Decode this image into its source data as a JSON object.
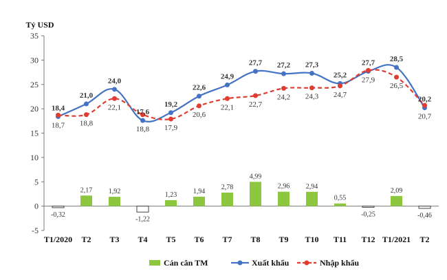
{
  "chart_data": {
    "type": "bar+line",
    "unit_label": "Tỷ USD",
    "categories": [
      "T1/2020",
      "T2",
      "T3",
      "T4",
      "T5",
      "T6",
      "T7",
      "T8",
      "T9",
      "T10",
      "T11",
      "T12",
      "T1/2021",
      "T2"
    ],
    "ylim": [
      -5,
      35
    ],
    "yticks": [
      -5,
      0,
      5,
      10,
      15,
      20,
      25,
      30,
      35
    ],
    "grid": false,
    "legend_position": "bottom",
    "series": [
      {
        "name": "Cán cân TM",
        "type": "bar",
        "color": "#8dc63f",
        "values": [
          -0.32,
          2.17,
          1.92,
          -1.22,
          1.23,
          1.94,
          2.78,
          4.99,
          2.96,
          2.94,
          0.55,
          -0.25,
          2.09,
          -0.46
        ],
        "labels": [
          "-0,32",
          "2,17",
          "1,92",
          "-1,22",
          "1,23",
          "1,94",
          "2,78",
          "4,99",
          "2,96",
          "2,94",
          "0,55",
          "-0,25",
          "2,09",
          "-0,46"
        ]
      },
      {
        "name": "Xuất khẩu",
        "type": "line",
        "color": "#4472c4",
        "values": [
          18.4,
          21.0,
          24.0,
          17.6,
          19.2,
          22.6,
          24.9,
          27.7,
          27.2,
          27.3,
          25.2,
          27.7,
          28.5,
          20.2
        ],
        "labels": [
          "18,4",
          "21,0",
          "24,0",
          "17,6",
          "19,2",
          "22,6",
          "24,9",
          "27,7",
          "27,2",
          "27,3",
          "25,2",
          "27,7",
          "28,5",
          "20,2"
        ]
      },
      {
        "name": "Nhập khẩu",
        "type": "line",
        "color": "#e03c31",
        "values": [
          18.7,
          18.8,
          22.1,
          18.8,
          17.9,
          20.6,
          22.1,
          22.7,
          24.2,
          24.3,
          24.7,
          27.9,
          26.5,
          20.7
        ],
        "labels": [
          "18,7",
          "18,8",
          "22,1",
          "18,8",
          "17,9",
          "20,6",
          "22,1",
          "22,7",
          "24,2",
          "24,3",
          "24,7",
          "27,9",
          "26,5",
          "20,7"
        ]
      }
    ]
  }
}
